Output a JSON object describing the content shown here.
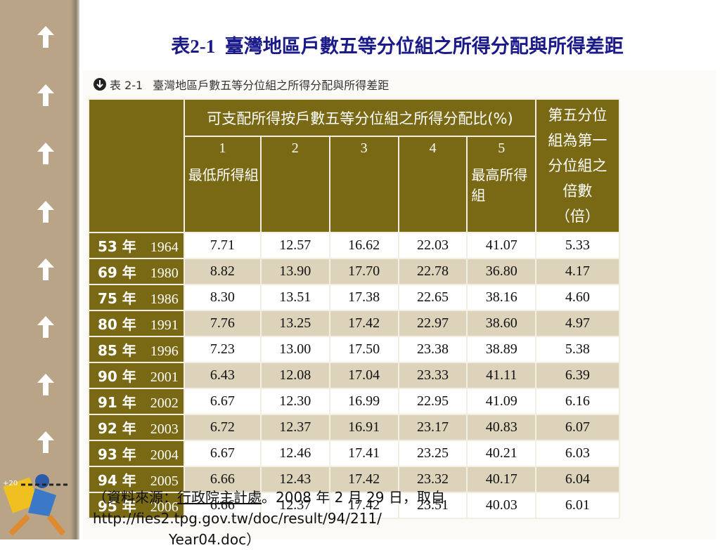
{
  "title": "表2-1  臺灣地區戶數五等分位組之所得分配與所得差距",
  "clipart_label": "+20",
  "table": {
    "caption_label": "表 2-1",
    "caption": "臺灣地區戶數五等分位組之所得分配與所得差距",
    "header": {
      "group": "可支配所得按戶數五等分位組之所得分配比(%)",
      "quintiles": [
        {
          "number": "1",
          "label": "最低所得組"
        },
        {
          "number": "2"
        },
        {
          "number": "3"
        },
        {
          "number": "4"
        },
        {
          "number": "5",
          "label": "最高所得組"
        }
      ],
      "ratio": "第五分位組為第一分位組之倍數（倍）"
    },
    "rows": [
      [
        "53 年",
        "1964",
        "7.71",
        "12.57",
        "16.62",
        "22.03",
        "41.07",
        "5.33"
      ],
      [
        "69 年",
        "1980",
        "8.82",
        "13.90",
        "17.70",
        "22.78",
        "36.80",
        "4.17"
      ],
      [
        "75 年",
        "1986",
        "8.30",
        "13.51",
        "17.38",
        "22.65",
        "38.16",
        "4.60"
      ],
      [
        "80 年",
        "1991",
        "7.76",
        "13.25",
        "17.42",
        "22.97",
        "38.60",
        "4.97"
      ],
      [
        "85 年",
        "1996",
        "7.23",
        "13.00",
        "17.50",
        "23.38",
        "38.89",
        "5.38"
      ],
      [
        "90 年",
        "2001",
        "6.43",
        "12.08",
        "17.04",
        "23.33",
        "41.11",
        "6.39"
      ],
      [
        "91 年",
        "2002",
        "6.67",
        "12.30",
        "16.99",
        "22.95",
        "41.09",
        "6.16"
      ],
      [
        "92 年",
        "2003",
        "6.72",
        "12.37",
        "16.91",
        "23.17",
        "40.83",
        "6.07"
      ],
      [
        "93 年",
        "2004",
        "6.67",
        "12.46",
        "17.41",
        "23.25",
        "40.21",
        "6.03"
      ],
      [
        "94 年",
        "2005",
        "6.66",
        "12.43",
        "17.42",
        "23.32",
        "40.17",
        "6.04"
      ],
      [
        "95 年",
        "2006",
        "6.66",
        "12.37",
        "17.42",
        "23.51",
        "40.03",
        "6.01"
      ]
    ]
  },
  "source": [
    "（資料來源：",
    "行政院",
    "主計處",
    "。2008 年 2 月 29 日，取自 http://fies2.tpg.gov.tw/doc/result/94/211/",
    "Year04.doc）"
  ]
}
